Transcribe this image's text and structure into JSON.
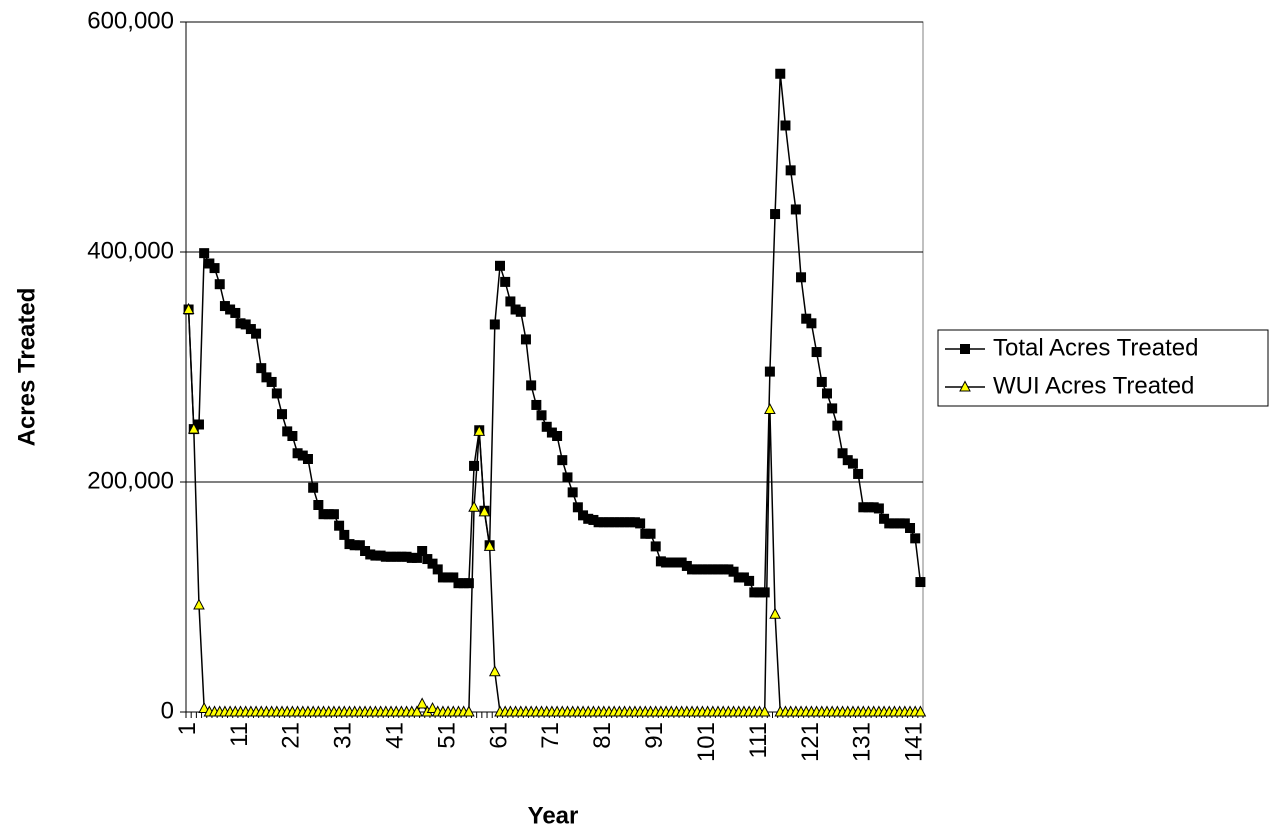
{
  "chart_data": {
    "type": "line",
    "x_label": "Year",
    "y_label": "Acres Treated",
    "categories": [
      "1",
      null,
      null,
      null,
      null,
      null,
      null,
      null,
      null,
      null,
      "11",
      null,
      null,
      null,
      null,
      null,
      null,
      null,
      null,
      null,
      "21",
      null,
      null,
      null,
      null,
      null,
      null,
      null,
      null,
      null,
      "31",
      null,
      null,
      null,
      null,
      null,
      null,
      null,
      null,
      null,
      "41",
      null,
      null,
      null,
      null,
      null,
      null,
      null,
      null,
      null,
      "51",
      null,
      null,
      null,
      null,
      null,
      null,
      null,
      null,
      null,
      "61",
      null,
      null,
      null,
      null,
      null,
      null,
      null,
      null,
      null,
      "71",
      null,
      null,
      null,
      null,
      null,
      null,
      null,
      null,
      null,
      "81",
      null,
      null,
      null,
      null,
      null,
      null,
      null,
      null,
      null,
      "91",
      null,
      null,
      null,
      null,
      null,
      null,
      null,
      null,
      null,
      "101",
      null,
      null,
      null,
      null,
      null,
      null,
      null,
      null,
      null,
      "111",
      null,
      null,
      null,
      null,
      null,
      null,
      null,
      null,
      null,
      "121",
      null,
      null,
      null,
      null,
      null,
      null,
      null,
      null,
      null,
      "131",
      null,
      null,
      null,
      null,
      null,
      null,
      null,
      null,
      null,
      "141",
      null
    ],
    "series": [
      {
        "name": "Total Acres Treated",
        "color": "#000000",
        "marker": "square",
        "marker_fill": "#000000",
        "values": [
          350000,
          246000,
          250000,
          399000,
          390000,
          386000,
          372000,
          353000,
          350000,
          347000,
          338000,
          337000,
          333000,
          329000,
          299000,
          291000,
          287000,
          277000,
          259000,
          244000,
          240000,
          225000,
          223000,
          220000,
          195000,
          180000,
          172000,
          172000,
          172000,
          162000,
          154000,
          146000,
          145000,
          145000,
          140000,
          137000,
          136000,
          136000,
          135000,
          135000,
          135000,
          135000,
          135000,
          134000,
          134000,
          140000,
          133000,
          129000,
          124000,
          117000,
          117000,
          117000,
          112000,
          112000,
          112000,
          214000,
          245000,
          175000,
          145000,
          337000,
          388000,
          374000,
          357000,
          350000,
          348000,
          324000,
          284000,
          267000,
          258000,
          248000,
          243000,
          240000,
          219000,
          204000,
          191000,
          178000,
          171000,
          168000,
          167000,
          165000,
          165000,
          165000,
          165000,
          165000,
          165000,
          165000,
          165000,
          164000,
          155000,
          155000,
          144000,
          131000,
          130000,
          130000,
          130000,
          130000,
          127000,
          124000,
          124000,
          124000,
          124000,
          124000,
          124000,
          124000,
          124000,
          122000,
          117000,
          117000,
          114000,
          104000,
          104000,
          104000,
          296000,
          433000,
          555000,
          510000,
          471000,
          437000,
          378000,
          342000,
          338000,
          313000,
          287000,
          277000,
          264000,
          249000,
          225000,
          219000,
          216000,
          207000,
          178000,
          178000,
          178000,
          177000,
          168000,
          164000,
          164000,
          164000,
          164000,
          160000,
          151000,
          113000
        ]
      },
      {
        "name": "WUI Acres Treated",
        "color": "#000000",
        "marker": "triangle",
        "marker_fill": "#ffff00",
        "values": [
          350000,
          246000,
          93000,
          3000,
          0,
          0,
          0,
          0,
          0,
          0,
          0,
          0,
          0,
          0,
          0,
          0,
          0,
          0,
          0,
          0,
          0,
          0,
          0,
          0,
          0,
          0,
          0,
          0,
          0,
          0,
          0,
          0,
          0,
          0,
          0,
          0,
          0,
          0,
          0,
          0,
          0,
          0,
          0,
          0,
          0,
          7000,
          0,
          3000,
          0,
          0,
          0,
          0,
          0,
          0,
          0,
          178000,
          244000,
          174000,
          144000,
          35000,
          0,
          0,
          0,
          0,
          0,
          0,
          0,
          0,
          0,
          0,
          0,
          0,
          0,
          0,
          0,
          0,
          0,
          0,
          0,
          0,
          0,
          0,
          0,
          0,
          0,
          0,
          0,
          0,
          0,
          0,
          0,
          0,
          0,
          0,
          0,
          0,
          0,
          0,
          0,
          0,
          0,
          0,
          0,
          0,
          0,
          0,
          0,
          0,
          0,
          0,
          0,
          0,
          263000,
          85000,
          0,
          0,
          0,
          0,
          0,
          0,
          0,
          0,
          0,
          0,
          0,
          0,
          0,
          0,
          0,
          0,
          0,
          0,
          0,
          0,
          0,
          0,
          0,
          0,
          0,
          0,
          0,
          0
        ]
      }
    ],
    "ylim": [
      0,
      600000
    ],
    "yticks": [
      0,
      {
        "value": 200000,
        "label": "200,000"
      },
      {
        "value": 400000,
        "label": "400,000"
      },
      {
        "value": 600000,
        "label": "600,000"
      }
    ],
    "grid": true,
    "legend": "right"
  }
}
